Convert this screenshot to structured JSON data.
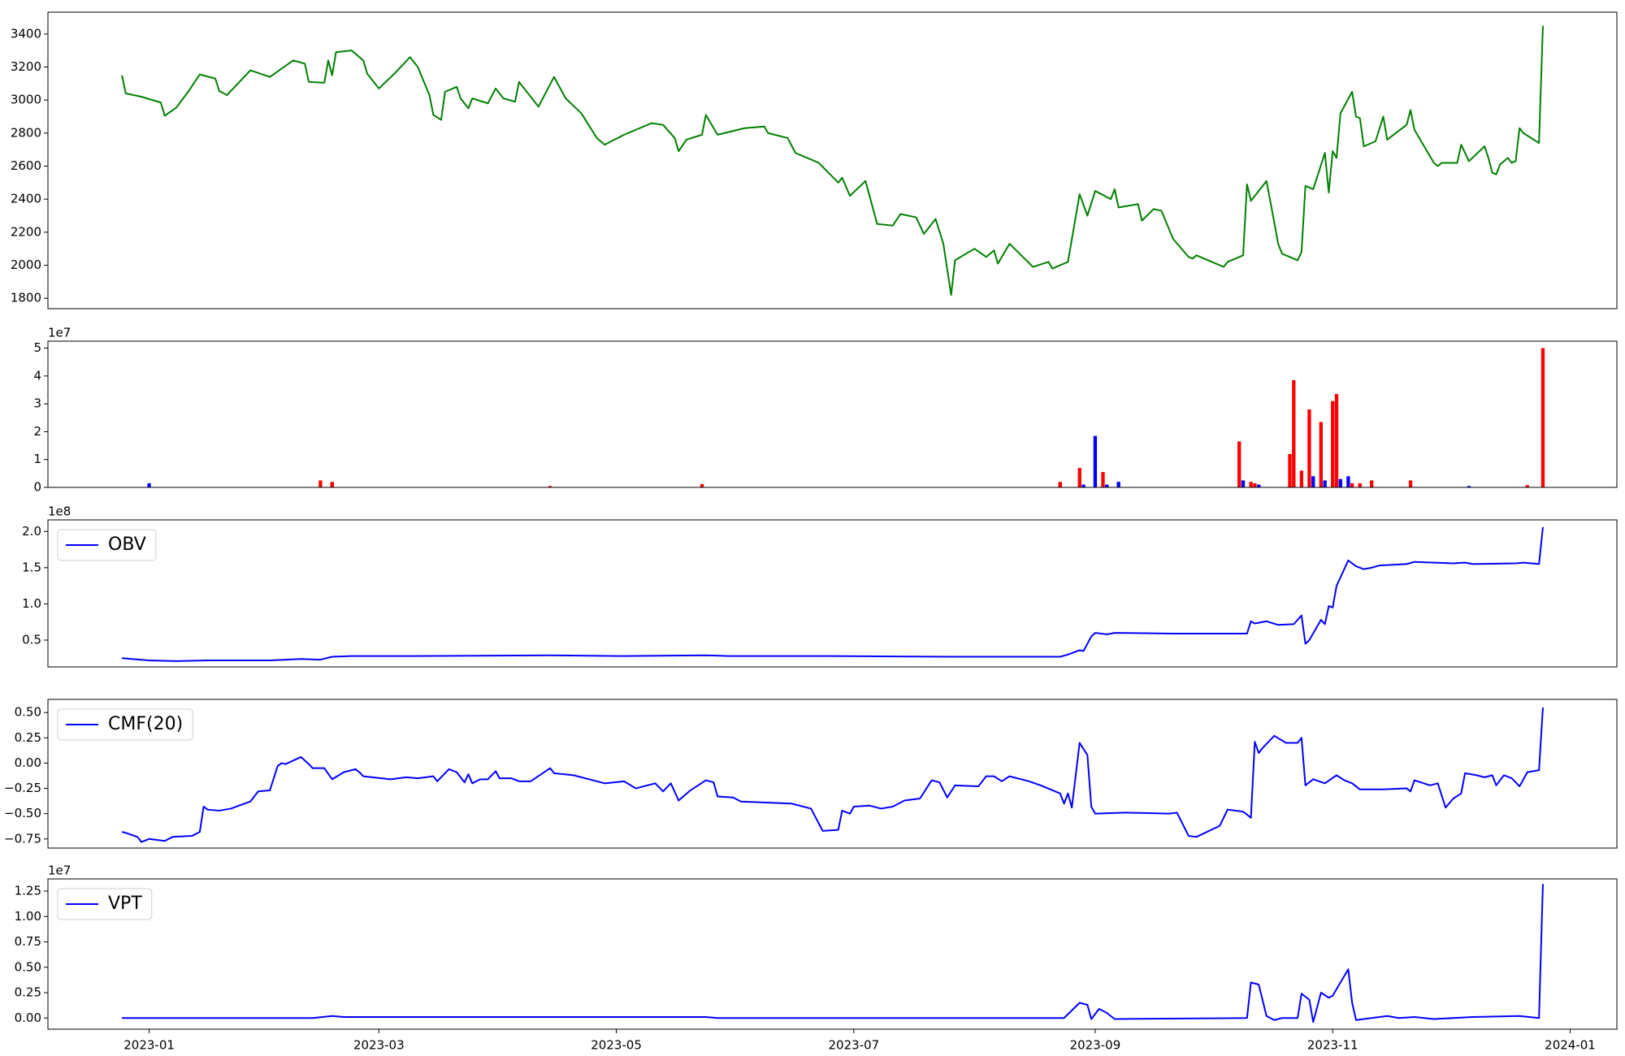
{
  "chart_data": [
    {
      "type": "line",
      "color": "#008000",
      "xlim": [
        "2022-12-06",
        "2024-01-13"
      ],
      "ylim": [
        1737,
        3532
      ],
      "yticks": [
        1800,
        2000,
        2200,
        2400,
        2600,
        2800,
        3000,
        3200,
        3400
      ],
      "x": [
        "2022-12-25",
        "2022-12-26",
        "2022-12-30",
        "2023-01-04",
        "2023-01-05",
        "2023-01-08",
        "2023-01-11",
        "2023-01-14",
        "2023-01-18",
        "2023-01-19",
        "2023-01-21",
        "2023-01-27",
        "2023-02-01",
        "2023-02-07",
        "2023-02-10",
        "2023-02-11",
        "2023-02-15",
        "2023-02-16",
        "2023-02-17",
        "2023-02-18",
        "2023-02-22",
        "2023-02-25",
        "2023-02-26",
        "2023-03-01",
        "2023-03-05",
        "2023-03-09",
        "2023-03-11",
        "2023-03-14",
        "2023-03-15",
        "2023-03-17",
        "2023-03-18",
        "2023-03-21",
        "2023-03-22",
        "2023-03-24",
        "2023-03-25",
        "2023-03-29",
        "2023-03-31",
        "2023-04-02",
        "2023-04-05",
        "2023-04-06",
        "2023-04-11",
        "2023-04-15",
        "2023-04-18",
        "2023-04-22",
        "2023-04-26",
        "2023-04-28",
        "2023-05-03",
        "2023-05-10",
        "2023-05-13",
        "2023-05-16",
        "2023-05-17",
        "2023-05-19",
        "2023-05-23",
        "2023-05-24",
        "2023-05-27",
        "2023-06-03",
        "2023-06-08",
        "2023-06-09",
        "2023-06-14",
        "2023-06-16",
        "2023-06-22",
        "2023-06-27",
        "2023-06-28",
        "2023-06-30",
        "2023-07-04",
        "2023-07-07",
        "2023-07-11",
        "2023-07-13",
        "2023-07-17",
        "2023-07-19",
        "2023-07-22",
        "2023-07-24",
        "2023-07-26",
        "2023-07-27",
        "2023-08-01",
        "2023-08-04",
        "2023-08-06",
        "2023-08-07",
        "2023-08-10",
        "2023-08-16",
        "2023-08-20",
        "2023-08-21",
        "2023-08-25",
        "2023-08-28",
        "2023-08-30",
        "2023-09-01",
        "2023-09-05",
        "2023-09-06",
        "2023-09-07",
        "2023-09-12",
        "2023-09-13",
        "2023-09-16",
        "2023-09-18",
        "2023-09-21",
        "2023-09-25",
        "2023-09-26",
        "2023-09-27",
        "2023-10-04",
        "2023-10-05",
        "2023-10-09",
        "2023-10-10",
        "2023-10-11",
        "2023-10-15",
        "2023-10-17",
        "2023-10-18",
        "2023-10-19",
        "2023-10-23",
        "2023-10-24",
        "2023-10-25",
        "2023-10-27",
        "2023-10-30",
        "2023-10-31",
        "2023-11-01",
        "2023-11-02",
        "2023-11-03",
        "2023-11-06",
        "2023-11-07",
        "2023-11-08",
        "2023-11-09",
        "2023-11-12",
        "2023-11-14",
        "2023-11-15",
        "2023-11-20",
        "2023-11-21",
        "2023-11-22",
        "2023-11-27",
        "2023-11-28",
        "2023-11-29",
        "2023-12-03",
        "2023-12-04",
        "2023-12-06",
        "2023-12-10",
        "2023-12-11",
        "2023-12-12",
        "2023-12-13",
        "2023-12-14",
        "2023-12-16",
        "2023-12-17",
        "2023-12-18",
        "2023-12-19",
        "2023-12-20",
        "2023-12-24",
        "2023-12-25"
      ],
      "values": [
        3150,
        3040,
        3020,
        2985,
        2905,
        2955,
        3050,
        3155,
        3130,
        3055,
        3030,
        3180,
        3140,
        3240,
        3220,
        3110,
        3105,
        3240,
        3150,
        3290,
        3300,
        3240,
        3160,
        3070,
        3160,
        3260,
        3200,
        3030,
        2910,
        2880,
        3050,
        3080,
        3010,
        2950,
        3010,
        2980,
        3070,
        3010,
        2990,
        3110,
        2960,
        3140,
        3010,
        2920,
        2770,
        2730,
        2790,
        2860,
        2850,
        2770,
        2690,
        2760,
        2790,
        2910,
        2790,
        2830,
        2840,
        2800,
        2770,
        2680,
        2620,
        2500,
        2530,
        2420,
        2510,
        2250,
        2240,
        2310,
        2290,
        2190,
        2280,
        2130,
        1820,
        2030,
        2100,
        2050,
        2090,
        2010,
        2130,
        1990,
        2020,
        1980,
        2020,
        2430,
        2300,
        2450,
        2400,
        2460,
        2350,
        2370,
        2270,
        2340,
        2330,
        2160,
        2050,
        2040,
        2060,
        1990,
        2020,
        2060,
        2490,
        2390,
        2510,
        2260,
        2130,
        2070,
        2030,
        2080,
        2480,
        2460,
        2680,
        2440,
        2690,
        2650,
        2920,
        3050,
        2900,
        2890,
        2720,
        2750,
        2900,
        2760,
        2850,
        2940,
        2820,
        2620,
        2600,
        2620,
        2620,
        2730,
        2630,
        2720,
        2650,
        2560,
        2550,
        2610,
        2650,
        2620,
        2630,
        2830,
        2800,
        2740,
        3450
      ]
    },
    {
      "type": "bar",
      "y_offset_label": "1e7",
      "xlim": [
        "2022-12-06",
        "2024-01-13"
      ],
      "ylim": [
        0,
        5.25
      ],
      "yticks": [
        0,
        1,
        2,
        3,
        4,
        5
      ],
      "x": [
        "2023-01-01",
        "2023-02-14",
        "2023-02-17",
        "2023-04-14",
        "2023-05-23",
        "2023-08-23",
        "2023-08-28",
        "2023-08-29",
        "2023-09-01",
        "2023-09-03",
        "2023-09-04",
        "2023-09-07",
        "2023-10-08",
        "2023-10-09",
        "2023-10-11",
        "2023-10-12",
        "2023-10-13",
        "2023-10-21",
        "2023-10-22",
        "2023-10-24",
        "2023-10-26",
        "2023-10-27",
        "2023-10-29",
        "2023-10-30",
        "2023-11-01",
        "2023-11-02",
        "2023-11-03",
        "2023-11-05",
        "2023-11-06",
        "2023-11-08",
        "2023-11-11",
        "2023-11-21",
        "2023-12-06",
        "2023-12-21",
        "2023-12-25"
      ],
      "values": [
        0.15,
        0.25,
        0.2,
        0.05,
        0.12,
        0.2,
        0.7,
        0.1,
        1.85,
        0.55,
        0.1,
        0.2,
        1.65,
        0.25,
        0.2,
        0.15,
        0.1,
        1.2,
        3.85,
        0.6,
        2.8,
        0.4,
        2.35,
        0.25,
        3.1,
        3.35,
        0.3,
        0.4,
        0.15,
        0.15,
        0.25,
        0.25,
        0.05,
        0.08,
        5.0
      ],
      "colors": [
        "#0000ff",
        "#ff0000",
        "#ff0000",
        "#ff0000",
        "#ff0000",
        "#ff0000",
        "#ff0000",
        "#0000ff",
        "#0000ff",
        "#ff0000",
        "#0000ff",
        "#0000ff",
        "#ff0000",
        "#0000ff",
        "#ff0000",
        "#ff0000",
        "#0000ff",
        "#ff0000",
        "#ff0000",
        "#ff0000",
        "#ff0000",
        "#0000ff",
        "#ff0000",
        "#0000ff",
        "#ff0000",
        "#ff0000",
        "#0000ff",
        "#0000ff",
        "#ff0000",
        "#ff0000",
        "#ff0000",
        "#ff0000",
        "#0000ff",
        "#ff0000",
        "#ff0000"
      ]
    },
    {
      "type": "line",
      "y_offset_label": "1e8",
      "legend": "upper left",
      "xlim": [
        "2022-12-06",
        "2024-01-13"
      ],
      "ylim": [
        0.13,
        2.16
      ],
      "yticks": [
        0.5,
        {
          "value": 1.0,
          "label": "1.0"
        },
        1.5,
        {
          "value": 2.0,
          "label": "2.0"
        }
      ],
      "x": [
        "2022-12-25",
        "2023-01-01",
        "2023-01-08",
        "2023-01-16",
        "2023-02-01",
        "2023-02-09",
        "2023-02-14",
        "2023-02-17",
        "2023-02-22",
        "2023-03-10",
        "2023-04-14",
        "2023-05-03",
        "2023-05-24",
        "2023-05-30",
        "2023-06-25",
        "2023-07-27",
        "2023-08-23",
        "2023-08-25",
        "2023-08-28",
        "2023-08-29",
        "2023-08-31",
        "2023-09-01",
        "2023-09-04",
        "2023-09-06",
        "2023-09-21",
        "2023-10-10",
        "2023-10-11",
        "2023-10-12",
        "2023-10-15",
        "2023-10-18",
        "2023-10-22",
        "2023-10-24",
        "2023-10-25",
        "2023-10-26",
        "2023-10-29",
        "2023-10-30",
        "2023-10-31",
        "2023-11-01",
        "2023-11-02",
        "2023-11-05",
        "2023-11-07",
        "2023-11-09",
        "2023-11-11",
        "2023-11-13",
        "2023-11-20",
        "2023-11-22",
        "2023-12-02",
        "2023-12-05",
        "2023-12-07",
        "2023-12-18",
        "2023-12-20",
        "2023-12-24",
        "2023-12-25"
      ],
      "series": [
        {
          "name": "OBV",
          "color": "#0000ff",
          "values": [
            0.25,
            0.22,
            0.21,
            0.22,
            0.22,
            0.24,
            0.23,
            0.27,
            0.28,
            0.28,
            0.29,
            0.28,
            0.29,
            0.28,
            0.28,
            0.27,
            0.27,
            0.3,
            0.36,
            0.35,
            0.55,
            0.6,
            0.58,
            0.6,
            0.59,
            0.59,
            0.76,
            0.73,
            0.76,
            0.71,
            0.72,
            0.84,
            0.45,
            0.5,
            0.78,
            0.72,
            0.97,
            0.95,
            1.25,
            1.6,
            1.52,
            1.48,
            1.5,
            1.53,
            1.55,
            1.58,
            1.56,
            1.57,
            1.55,
            1.56,
            1.57,
            1.55,
            2.06
          ]
        }
      ]
    },
    {
      "type": "line",
      "legend": "upper left",
      "xlim": [
        "2022-12-06",
        "2024-01-13"
      ],
      "ylim": [
        -0.84,
        0.63
      ],
      "yticks": [
        {
          "value": -0.75,
          "label": "−0.75"
        },
        {
          "value": -0.5,
          "label": "−0.50"
        },
        {
          "value": -0.25,
          "label": "−0.25"
        },
        {
          "value": 0,
          "label": "0.00"
        },
        0.25,
        {
          "value": 0.5,
          "label": "0.50"
        }
      ],
      "x": [
        "2022-12-25",
        "2022-12-26",
        "2022-12-29",
        "2022-12-30",
        "2023-01-01",
        "2023-01-05",
        "2023-01-07",
        "2023-01-12",
        "2023-01-14",
        "2023-01-15",
        "2023-01-16",
        "2023-01-19",
        "2023-01-22",
        "2023-01-27",
        "2023-01-29",
        "2023-02-01",
        "2023-02-03",
        "2023-02-04",
        "2023-02-05",
        "2023-02-09",
        "2023-02-11",
        "2023-02-12",
        "2023-02-15",
        "2023-02-17",
        "2023-02-20",
        "2023-02-23",
        "2023-02-24",
        "2023-02-25",
        "2023-03-04",
        "2023-03-08",
        "2023-03-11",
        "2023-03-15",
        "2023-03-16",
        "2023-03-19",
        "2023-03-21",
        "2023-03-23",
        "2023-03-24",
        "2023-03-25",
        "2023-03-27",
        "2023-03-29",
        "2023-03-31",
        "2023-04-01",
        "2023-04-04",
        "2023-04-06",
        "2023-04-09",
        "2023-04-14",
        "2023-04-15",
        "2023-04-20",
        "2023-04-28",
        "2023-05-03",
        "2023-05-06",
        "2023-05-11",
        "2023-05-13",
        "2023-05-15",
        "2023-05-17",
        "2023-05-20",
        "2023-05-24",
        "2023-05-26",
        "2023-05-27",
        "2023-05-31",
        "2023-06-02",
        "2023-06-15",
        "2023-06-20",
        "2023-06-23",
        "2023-06-27",
        "2023-06-28",
        "2023-06-30",
        "2023-07-01",
        "2023-07-05",
        "2023-07-08",
        "2023-07-11",
        "2023-07-14",
        "2023-07-18",
        "2023-07-21",
        "2023-07-23",
        "2023-07-25",
        "2023-07-27",
        "2023-08-02",
        "2023-08-04",
        "2023-08-06",
        "2023-08-08",
        "2023-08-10",
        "2023-08-15",
        "2023-08-18",
        "2023-08-23",
        "2023-08-24",
        "2023-08-25",
        "2023-08-26",
        "2023-08-28",
        "2023-08-30",
        "2023-08-31",
        "2023-09-01",
        "2023-09-09",
        "2023-09-20",
        "2023-09-22",
        "2023-09-25",
        "2023-09-27",
        "2023-10-03",
        "2023-10-05",
        "2023-10-09",
        "2023-10-11",
        "2023-10-12",
        "2023-10-13",
        "2023-10-14",
        "2023-10-17",
        "2023-10-20",
        "2023-10-23",
        "2023-10-24",
        "2023-10-25",
        "2023-10-27",
        "2023-10-30",
        "2023-11-02",
        "2023-11-04",
        "2023-11-06",
        "2023-11-08",
        "2023-11-14",
        "2023-11-20",
        "2023-11-21",
        "2023-11-22",
        "2023-11-26",
        "2023-11-28",
        "2023-11-30",
        "2023-12-02",
        "2023-12-04",
        "2023-12-05",
        "2023-12-08",
        "2023-12-10",
        "2023-12-12",
        "2023-12-13",
        "2023-12-15",
        "2023-12-17",
        "2023-12-19",
        "2023-12-21",
        "2023-12-24",
        "2023-12-25"
      ],
      "series": [
        {
          "name": "CMF(20)",
          "color": "#0000ff",
          "values": [
            -0.68,
            -0.69,
            -0.73,
            -0.78,
            -0.75,
            -0.77,
            -0.73,
            -0.72,
            -0.68,
            -0.43,
            -0.46,
            -0.47,
            -0.45,
            -0.38,
            -0.28,
            -0.27,
            -0.03,
            0.0,
            -0.01,
            0.06,
            -0.01,
            -0.05,
            -0.05,
            -0.16,
            -0.09,
            -0.06,
            -0.09,
            -0.13,
            -0.16,
            -0.14,
            -0.15,
            -0.13,
            -0.18,
            -0.06,
            -0.09,
            -0.19,
            -0.11,
            -0.2,
            -0.16,
            -0.16,
            -0.08,
            -0.15,
            -0.15,
            -0.18,
            -0.18,
            -0.05,
            -0.1,
            -0.12,
            -0.2,
            -0.18,
            -0.25,
            -0.2,
            -0.28,
            -0.2,
            -0.37,
            -0.27,
            -0.17,
            -0.19,
            -0.33,
            -0.34,
            -0.38,
            -0.4,
            -0.45,
            -0.67,
            -0.66,
            -0.47,
            -0.5,
            -0.43,
            -0.42,
            -0.45,
            -0.43,
            -0.37,
            -0.35,
            -0.17,
            -0.19,
            -0.34,
            -0.22,
            -0.23,
            -0.13,
            -0.13,
            -0.18,
            -0.13,
            -0.18,
            -0.22,
            -0.3,
            -0.4,
            -0.3,
            -0.44,
            0.2,
            0.08,
            -0.43,
            -0.5,
            -0.49,
            -0.5,
            -0.49,
            -0.72,
            -0.73,
            -0.62,
            -0.46,
            -0.48,
            -0.54,
            0.21,
            0.1,
            0.15,
            0.27,
            0.2,
            0.2,
            0.25,
            -0.22,
            -0.16,
            -0.2,
            -0.12,
            -0.17,
            -0.2,
            -0.26,
            -0.26,
            -0.25,
            -0.28,
            -0.17,
            -0.22,
            -0.2,
            -0.44,
            -0.35,
            -0.3,
            -0.1,
            -0.12,
            -0.14,
            -0.12,
            -0.22,
            -0.12,
            -0.15,
            -0.23,
            -0.09,
            -0.07,
            0.55
          ]
        }
      ]
    },
    {
      "type": "line",
      "y_offset_label": "1e7",
      "legend": "upper left",
      "xlim": [
        "2022-12-06",
        "2024-01-13"
      ],
      "ylim": [
        -0.11,
        1.37
      ],
      "yticks": [
        {
          "value": 0,
          "label": "0.00"
        },
        0.25,
        {
          "value": 0.5,
          "label": "0.50"
        },
        0.75,
        {
          "value": 1.0,
          "label": "1.00"
        },
        1.25
      ],
      "xticks": [
        {
          "value": "2023-01-01",
          "label": "2023-01"
        },
        {
          "value": "2023-03-01",
          "label": "2023-03"
        },
        {
          "value": "2023-05-01",
          "label": "2023-05"
        },
        {
          "value": "2023-07-01",
          "label": "2023-07"
        },
        {
          "value": "2023-09-01",
          "label": "2023-09"
        },
        {
          "value": "2023-11-01",
          "label": "2023-11"
        },
        {
          "value": "2024-01-01",
          "label": "2024-01"
        }
      ],
      "x": [
        "2022-12-25",
        "2023-02-12",
        "2023-02-17",
        "2023-02-20",
        "2023-05-24",
        "2023-05-27",
        "2023-08-24",
        "2023-08-28",
        "2023-08-30",
        "2023-08-31",
        "2023-09-02",
        "2023-09-04",
        "2023-09-06",
        "2023-10-10",
        "2023-10-11",
        "2023-10-13",
        "2023-10-15",
        "2023-10-17",
        "2023-10-19",
        "2023-10-23",
        "2023-10-24",
        "2023-10-26",
        "2023-10-27",
        "2023-10-29",
        "2023-10-31",
        "2023-11-01",
        "2023-11-03",
        "2023-11-05",
        "2023-11-06",
        "2023-11-07",
        "2023-11-11",
        "2023-11-15",
        "2023-11-18",
        "2023-11-22",
        "2023-11-27",
        "2023-12-07",
        "2023-12-19",
        "2023-12-24",
        "2023-12-25"
      ],
      "series": [
        {
          "name": "VPT",
          "color": "#0000ff",
          "values": [
            0.0,
            0.0,
            0.02,
            0.01,
            0.01,
            0.0,
            0.0,
            0.15,
            0.13,
            -0.01,
            0.09,
            0.05,
            -0.01,
            0.0,
            0.35,
            0.33,
            0.02,
            -0.02,
            0.0,
            0.0,
            0.24,
            0.18,
            -0.04,
            0.25,
            0.2,
            0.22,
            0.35,
            0.48,
            0.15,
            -0.02,
            0.0,
            0.02,
            0.0,
            0.01,
            -0.01,
            0.01,
            0.02,
            0.0,
            1.32
          ]
        }
      ]
    }
  ]
}
